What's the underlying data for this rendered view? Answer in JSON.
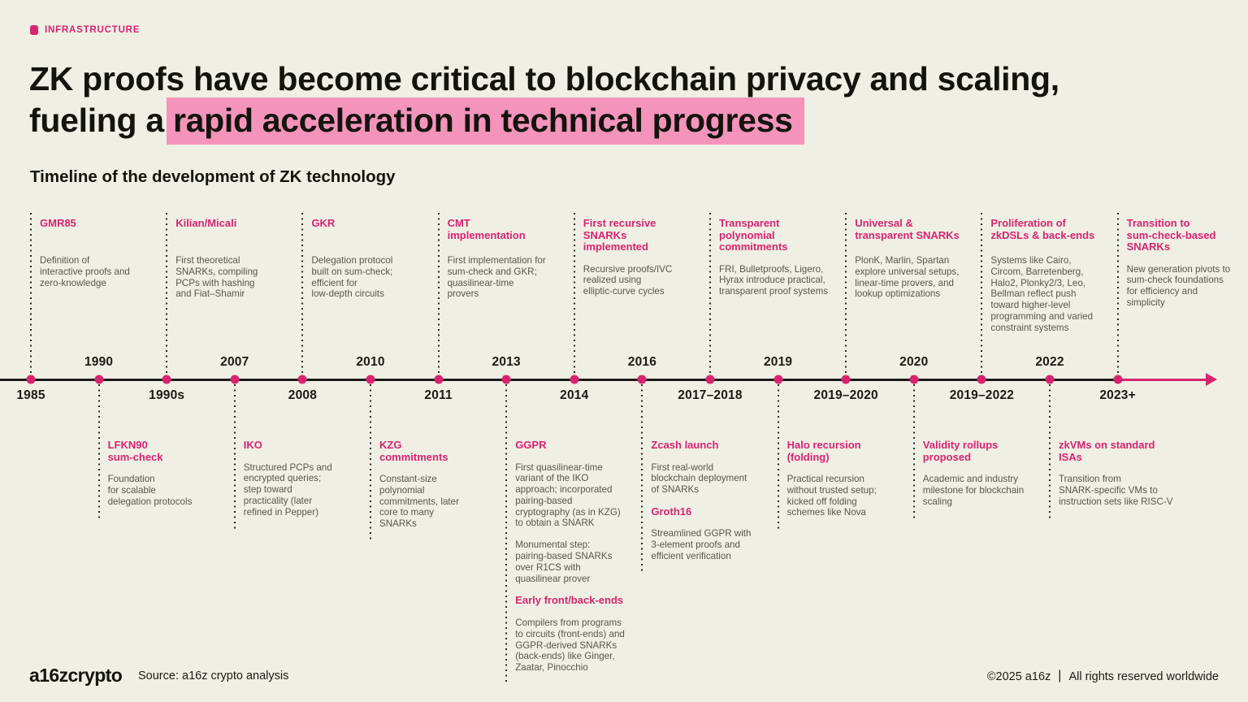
{
  "colors": {
    "background": "#F0EFE5",
    "accent_pink": "#D8246E",
    "highlight_pink": "#F494BB",
    "ink": "#1B1B16",
    "body_gray": "#57564F"
  },
  "tag": {
    "label": "INFRASTRUCTURE"
  },
  "title": {
    "line1": "ZK proofs have become critical to blockchain privacy and scaling,",
    "line2_prefix": "fueling a ",
    "line2_highlight": "rapid acceleration in technical progress"
  },
  "subtitle": "Timeline of the development of ZK technology",
  "timeline": {
    "milestones": [
      {
        "year": "1985",
        "year_position": "below",
        "event": {
          "sections": [
            {
              "heading": "GMR85",
              "paragraphs": [
                "Definition of\ninteractive proofs and\nzero-knowledge"
              ]
            }
          ]
        }
      },
      {
        "year": "1990",
        "year_position": "above",
        "event": {
          "sections": [
            {
              "heading": "LFKN90\nsum-check",
              "paragraphs": [
                "Foundation\nfor scalable\ndelegation protocols"
              ]
            }
          ]
        }
      },
      {
        "year": "1990s",
        "year_position": "below",
        "event": {
          "sections": [
            {
              "heading": "Kilian/Micali",
              "paragraphs": [
                "First theoretical\nSNARKs, compiling\nPCPs with hashing\nand Fiat–Shamir"
              ]
            }
          ]
        }
      },
      {
        "year": "2007",
        "year_position": "above",
        "event": {
          "sections": [
            {
              "heading": "IKO",
              "paragraphs": [
                "Structured PCPs and\nencrypted queries;\nstep toward\npracticality (later\nrefined in Pepper)"
              ]
            }
          ]
        }
      },
      {
        "year": "2008",
        "year_position": "below",
        "event": {
          "sections": [
            {
              "heading": "GKR",
              "paragraphs": [
                "Delegation protocol\nbuilt on sum-check;\nefficient for\nlow-depth circuits"
              ]
            }
          ]
        }
      },
      {
        "year": "2010",
        "year_position": "above",
        "event": {
          "sections": [
            {
              "heading": "KZG\ncommitments",
              "paragraphs": [
                "Constant-size\npolynomial\ncommitments, later\ncore to many\nSNARKs"
              ]
            }
          ]
        }
      },
      {
        "year": "2011",
        "year_position": "below",
        "event": {
          "sections": [
            {
              "heading": "CMT\nimplementation",
              "paragraphs": [
                "First implementation for\nsum-check and GKR;\nquasilinear-time\nprovers"
              ]
            }
          ]
        }
      },
      {
        "year": "2013",
        "year_position": "above",
        "event": {
          "sections": [
            {
              "heading": "GGPR",
              "paragraphs": [
                "First quasilinear-time\nvariant of the IKO\napproach; incorporated\npairing-based\ncryptography (as in KZG)\nto obtain a SNARK",
                "Monumental step:\npairing-based SNARKs\nover R1CS with\nquasilinear prover"
              ]
            },
            {
              "heading": "Early front/back-ends",
              "paragraphs": [
                "Compilers from programs\nto circuits (front-ends) and\nGGPR-derived SNARKs\n(back-ends) like Ginger,\nZaatar, Pinocchio"
              ]
            }
          ]
        }
      },
      {
        "year": "2014",
        "year_position": "below",
        "event": {
          "sections": [
            {
              "heading": "First recursive\nSNARKs\nimplemented",
              "paragraphs": [
                "Recursive proofs/IVC\nrealized using\nelliptic-curve cycles"
              ]
            }
          ]
        }
      },
      {
        "year": "2016",
        "year_position": "above",
        "event": {
          "sections": [
            {
              "heading": "Zcash launch",
              "paragraphs": [
                "First real-world\nblockchain deployment\nof SNARKs"
              ]
            },
            {
              "heading": "Groth16",
              "paragraphs": [
                "Streamlined GGPR with\n3-element proofs and\nefficient verification"
              ]
            }
          ]
        }
      },
      {
        "year": "2017–2018",
        "year_position": "below",
        "event": {
          "sections": [
            {
              "heading": "Transparent\npolynomial\ncommitments",
              "paragraphs": [
                "FRI, Bulletproofs, Ligero,\nHyrax introduce practical,\ntransparent proof systems"
              ]
            }
          ]
        }
      },
      {
        "year": "2019",
        "year_position": "above",
        "event": {
          "sections": [
            {
              "heading": "Halo recursion\n(folding)",
              "paragraphs": [
                "Practical recursion\nwithout trusted setup;\nkicked off folding\nschemes like Nova"
              ]
            }
          ]
        }
      },
      {
        "year": "2019–2020",
        "year_position": "below",
        "event": {
          "sections": [
            {
              "heading": "Universal &\ntransparent SNARKs",
              "paragraphs": [
                "PlonK, Marlin, Spartan\nexplore universal setups,\nlinear-time provers, and\nlookup optimizations"
              ]
            }
          ]
        }
      },
      {
        "year": "2020",
        "year_position": "above",
        "event": {
          "sections": [
            {
              "heading": "Validity rollups\nproposed",
              "paragraphs": [
                "Academic and industry\nmilestone for blockchain\nscaling"
              ]
            }
          ]
        }
      },
      {
        "year": "2019–2022",
        "year_position": "below",
        "event": {
          "sections": [
            {
              "heading": "Proliferation of\nzkDSLs & back-ends",
              "paragraphs": [
                "Systems like Cairo,\nCircom, Barretenberg,\nHalo2, Plonky2/3, Leo,\nBellman reflect push\ntoward higher-level\nprogramming and varied\nconstraint systems"
              ]
            }
          ]
        }
      },
      {
        "year": "2022",
        "year_position": "above",
        "event": {
          "sections": [
            {
              "heading": "zkVMs on standard\nISAs",
              "paragraphs": [
                "Transition from\nSNARK-specific VMs to\ninstruction sets like RISC-V"
              ]
            }
          ]
        }
      },
      {
        "year": "2023+",
        "year_position": "below",
        "event": {
          "sections": [
            {
              "heading": "Transition to\nsum-check-based\nSNARKs",
              "paragraphs": [
                "New generation pivots to\nsum-check foundations\nfor efficiency and\nsimplicity"
              ]
            }
          ]
        }
      }
    ]
  },
  "footer": {
    "logo": "a16zcrypto",
    "source": "Source: a16z crypto analysis",
    "copyright_left": "©2025 a16z",
    "divider": "|",
    "copyright_right": "All rights reserved worldwide"
  }
}
